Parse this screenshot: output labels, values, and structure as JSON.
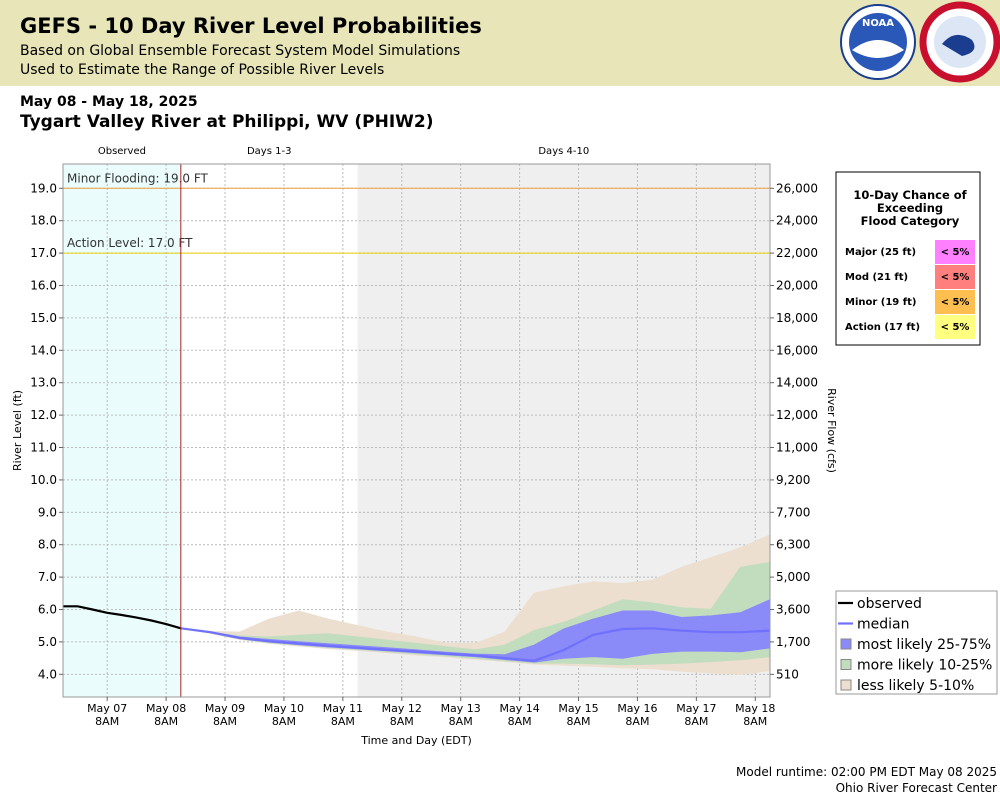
{
  "header": {
    "title": "GEFS - 10 Day River Level Probabilities",
    "subtitle_lines": [
      "Based on Global Ensemble Forecast System Model Simulations",
      "Used to Estimate the Range of Possible River Levels"
    ],
    "logo_text": "NOAA"
  },
  "date_range": "May 08 - May 18, 2025",
  "location": "Tygart Valley River at Philippi, WV (PHIW2)",
  "chart_data": {
    "type": "river-probability",
    "ylabel": "River Level (ft)",
    "y2label": "River Flow (cfs)",
    "xlabel": "Time and Day (EDT)",
    "ylim": [
      3.3,
      19.75
    ],
    "yticks": [
      {
        "value": 4,
        "label": "4.0"
      },
      {
        "value": 5,
        "label": "5.0"
      },
      {
        "value": 6,
        "label": "6.0"
      },
      {
        "value": 7,
        "label": "7.0"
      },
      {
        "value": 8,
        "label": "8.0"
      },
      {
        "value": 9,
        "label": "9.0"
      },
      {
        "value": 10,
        "label": "10.0"
      },
      {
        "value": 11,
        "label": "11.0"
      },
      {
        "value": 12,
        "label": "12.0"
      },
      {
        "value": 13,
        "label": "13.0"
      },
      {
        "value": 14,
        "label": "14.0"
      },
      {
        "value": 15,
        "label": "15.0"
      },
      {
        "value": 16,
        "label": "16.0"
      },
      {
        "value": 17,
        "label": "17.0"
      },
      {
        "value": 18,
        "label": "18.0"
      },
      {
        "value": 19,
        "label": "19.0"
      }
    ],
    "y2ticks": [
      510,
      {
        "value": 1700,
        "label": "1,700"
      },
      {
        "value": 3600,
        "label": "3,600"
      },
      {
        "value": 5000,
        "label": "5,000"
      },
      {
        "value": 6300,
        "label": "6,300"
      },
      {
        "value": 7700,
        "label": "7,700"
      },
      {
        "value": 9200,
        "label": "9,200"
      },
      {
        "value": 11000,
        "label": "11,000"
      },
      {
        "value": 12000,
        "label": "12,000"
      },
      {
        "value": 14000,
        "label": "14,000"
      },
      {
        "value": 16000,
        "label": "16,000"
      },
      {
        "value": 18000,
        "label": "18,000"
      },
      {
        "value": 20000,
        "label": "20,000"
      },
      {
        "value": 22000,
        "label": "22,000"
      },
      {
        "value": 24000,
        "label": "24,000"
      },
      {
        "value": 26000,
        "label": "26,000"
      }
    ],
    "y2scale": "rating",
    "grid": true,
    "xlim": [
      "2025-05-06T14:00",
      "2025-05-18T14:00"
    ],
    "xticks": [
      {
        "value": "2025-05-07T08:00",
        "label": [
          "May 07",
          "8AM"
        ]
      },
      {
        "value": "2025-05-08T08:00",
        "label": [
          "May 08",
          "8AM"
        ]
      },
      {
        "value": "2025-05-09T08:00",
        "label": [
          "May 09",
          "8AM"
        ]
      },
      {
        "value": "2025-05-10T08:00",
        "label": [
          "May 10",
          "8AM"
        ]
      },
      {
        "value": "2025-05-11T08:00",
        "label": [
          "May 11",
          "8AM"
        ]
      },
      {
        "value": "2025-05-12T08:00",
        "label": [
          "May 12",
          "8AM"
        ]
      },
      {
        "value": "2025-05-13T08:00",
        "label": [
          "May 13",
          "8AM"
        ]
      },
      {
        "value": "2025-05-14T08:00",
        "label": [
          "May 14",
          "8AM"
        ]
      },
      {
        "value": "2025-05-15T08:00",
        "label": [
          "May 15",
          "8AM"
        ]
      },
      {
        "value": "2025-05-16T08:00",
        "label": [
          "May 16",
          "8AM"
        ]
      },
      {
        "value": "2025-05-17T08:00",
        "label": [
          "May 17",
          "8AM"
        ]
      },
      {
        "value": "2025-05-18T08:00",
        "label": [
          "May 18",
          "8AM"
        ]
      }
    ],
    "regions": [
      {
        "label": "Observed",
        "start": "2025-05-06T14:00",
        "end": "2025-05-08T14:00",
        "color": "#eafcfc"
      },
      {
        "label": "Days 1-3",
        "start": "2025-05-08T14:00",
        "end": "2025-05-11T14:00",
        "color": "#ffffff"
      },
      {
        "label": "Days 4-10",
        "start": "2025-05-11T14:00",
        "end": "2025-05-18T14:00",
        "color": "#efefef"
      }
    ],
    "thresholds": [
      {
        "label": "Minor Flooding: 19.0 FT",
        "value": 19,
        "color": "#f0a040"
      },
      {
        "label": "Action Level: 17.0 FT",
        "value": 17,
        "color": "#e8d000"
      }
    ],
    "series": [
      {
        "name": "less likely 5-10%",
        "kind": "band",
        "color": "#ecdfd0",
        "x": [
          "2025-05-08T14:00",
          "2025-05-09T02:00",
          "2025-05-09T14:00",
          "2025-05-10T02:00",
          "2025-05-10T14:00",
          "2025-05-11T02:00",
          "2025-05-11T14:00",
          "2025-05-12T02:00",
          "2025-05-12T14:00",
          "2025-05-13T02:00",
          "2025-05-13T14:00",
          "2025-05-14T02:00",
          "2025-05-14T14:00",
          "2025-05-15T02:00",
          "2025-05-15T14:00",
          "2025-05-16T02:00",
          "2025-05-16T14:00",
          "2025-05-17T02:00",
          "2025-05-17T14:00",
          "2025-05-18T02:00",
          "2025-05-18T14:00"
        ],
        "lower": [
          5.42,
          5.27,
          5.08,
          4.96,
          4.88,
          4.8,
          4.74,
          4.67,
          4.6,
          4.54,
          4.47,
          4.4,
          4.32,
          4.28,
          4.25,
          4.2,
          4.18,
          4.1,
          4.05,
          4.0,
          4.12
        ],
        "upper": [
          5.42,
          5.32,
          5.3,
          5.7,
          5.95,
          5.7,
          5.5,
          5.3,
          5.15,
          4.95,
          4.95,
          5.3,
          6.5,
          6.7,
          6.85,
          6.8,
          6.9,
          7.3,
          7.6,
          7.9,
          8.3
        ]
      },
      {
        "name": "more likely 10-25%",
        "kind": "band",
        "color": "#c2dcbe",
        "x": [
          "2025-05-08T14:00",
          "2025-05-09T02:00",
          "2025-05-09T14:00",
          "2025-05-10T02:00",
          "2025-05-10T14:00",
          "2025-05-11T02:00",
          "2025-05-11T14:00",
          "2025-05-12T02:00",
          "2025-05-12T14:00",
          "2025-05-13T02:00",
          "2025-05-13T14:00",
          "2025-05-14T02:00",
          "2025-05-14T14:00",
          "2025-05-15T02:00",
          "2025-05-15T14:00",
          "2025-05-16T02:00",
          "2025-05-16T14:00",
          "2025-05-17T02:00",
          "2025-05-17T14:00",
          "2025-05-18T02:00",
          "2025-05-18T14:00"
        ],
        "lower": [
          5.42,
          5.28,
          5.1,
          4.98,
          4.9,
          4.83,
          4.77,
          4.7,
          4.63,
          4.57,
          4.5,
          4.42,
          4.35,
          4.35,
          4.33,
          4.3,
          4.32,
          4.35,
          4.4,
          4.45,
          4.55
        ],
        "upper": [
          5.42,
          5.3,
          5.18,
          5.15,
          5.2,
          5.25,
          5.15,
          5.05,
          4.95,
          4.85,
          4.75,
          4.9,
          5.35,
          5.6,
          5.95,
          6.3,
          6.2,
          6.05,
          6.0,
          7.3,
          7.45
        ]
      },
      {
        "name": "most likely 25-75%",
        "kind": "band",
        "color": "#8a8af8",
        "x": [
          "2025-05-08T14:00",
          "2025-05-09T02:00",
          "2025-05-09T14:00",
          "2025-05-10T02:00",
          "2025-05-10T14:00",
          "2025-05-11T02:00",
          "2025-05-11T14:00",
          "2025-05-12T02:00",
          "2025-05-12T14:00",
          "2025-05-13T02:00",
          "2025-05-13T14:00",
          "2025-05-14T02:00",
          "2025-05-14T14:00",
          "2025-05-15T02:00",
          "2025-05-15T14:00",
          "2025-05-16T02:00",
          "2025-05-16T14:00",
          "2025-05-17T02:00",
          "2025-05-17T14:00",
          "2025-05-18T02:00",
          "2025-05-18T14:00"
        ],
        "lower": [
          5.42,
          5.29,
          5.11,
          5.0,
          4.92,
          4.85,
          4.79,
          4.73,
          4.67,
          4.61,
          4.55,
          4.46,
          4.38,
          4.5,
          4.55,
          4.5,
          4.65,
          4.72,
          4.72,
          4.7,
          4.82
        ],
        "upper": [
          5.42,
          5.31,
          5.15,
          5.07,
          5.0,
          4.94,
          4.88,
          4.82,
          4.75,
          4.68,
          4.62,
          4.6,
          4.9,
          5.4,
          5.7,
          5.95,
          5.95,
          5.75,
          5.8,
          5.9,
          6.3
        ]
      },
      {
        "name": "median",
        "kind": "line",
        "color": "#7070ff",
        "x": [
          "2025-05-08T14:00",
          "2025-05-09T02:00",
          "2025-05-09T14:00",
          "2025-05-10T02:00",
          "2025-05-10T14:00",
          "2025-05-11T02:00",
          "2025-05-11T14:00",
          "2025-05-12T02:00",
          "2025-05-12T14:00",
          "2025-05-13T02:00",
          "2025-05-13T14:00",
          "2025-05-14T02:00",
          "2025-05-14T14:00",
          "2025-05-15T02:00",
          "2025-05-15T14:00",
          "2025-05-16T02:00",
          "2025-05-16T14:00",
          "2025-05-17T02:00",
          "2025-05-17T14:00",
          "2025-05-18T02:00",
          "2025-05-18T14:00"
        ],
        "values": [
          5.42,
          5.3,
          5.12,
          5.02,
          4.95,
          4.88,
          4.82,
          4.76,
          4.7,
          4.64,
          4.58,
          4.5,
          4.42,
          4.75,
          5.22,
          5.4,
          5.42,
          5.35,
          5.3,
          5.3,
          5.35
        ]
      },
      {
        "name": "observed",
        "kind": "line",
        "color": "#000000",
        "x": [
          "2025-05-06T14:00",
          "2025-05-06T20:00",
          "2025-05-07T02:00",
          "2025-05-07T08:00",
          "2025-05-07T14:00",
          "2025-05-07T20:00",
          "2025-05-08T02:00",
          "2025-05-08T08:00",
          "2025-05-08T14:00"
        ],
        "values": [
          6.1,
          6.1,
          6.0,
          5.9,
          5.83,
          5.75,
          5.66,
          5.55,
          5.42
        ]
      }
    ],
    "legend_order": [
      4,
      3,
      2,
      1,
      0
    ]
  },
  "flood_table": {
    "title": [
      "10-Day Chance of",
      "Exceeding",
      "Flood Category"
    ],
    "rows": [
      {
        "category": "Major (25 ft)",
        "chance": "< 5%",
        "color": "#ff80ff"
      },
      {
        "category": "Mod (21 ft)",
        "chance": "< 5%",
        "color": "#ff7f7f"
      },
      {
        "category": "Minor (19 ft)",
        "chance": "< 5%",
        "color": "#ffbf50"
      },
      {
        "category": "Action (17 ft)",
        "chance": "< 5%",
        "color": "#ffff80"
      }
    ]
  },
  "footer": [
    "Model runtime: 02:00 PM EDT May 08 2025",
    "Ohio River Forecast Center"
  ]
}
